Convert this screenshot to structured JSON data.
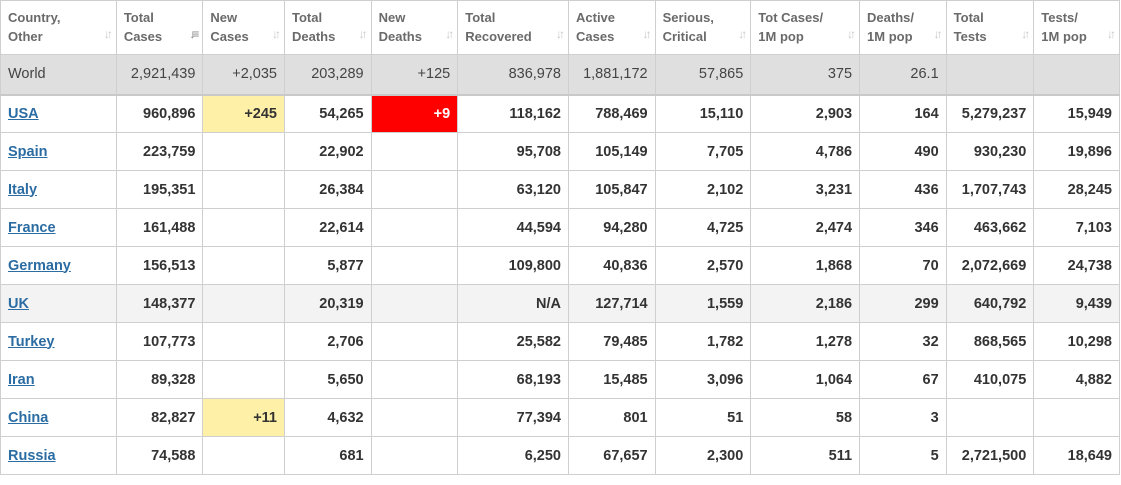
{
  "colors": {
    "new_cases_highlight": "#fff0a8",
    "new_deaths_highlight": "#ff0000",
    "link": "#2b6ca3",
    "world_row_bg": "#dfdfdf"
  },
  "headers": [
    {
      "l1": "Country,",
      "l2": "Other",
      "sort_icon": "sort-both-icon"
    },
    {
      "l1": "Total",
      "l2": "Cases",
      "sort_icon": "sort-descending-icon"
    },
    {
      "l1": "New",
      "l2": "Cases",
      "sort_icon": "sort-both-icon"
    },
    {
      "l1": "Total",
      "l2": "Deaths",
      "sort_icon": "sort-both-icon"
    },
    {
      "l1": "New",
      "l2": "Deaths",
      "sort_icon": "sort-both-icon"
    },
    {
      "l1": "Total",
      "l2": "Recovered",
      "sort_icon": "sort-both-icon"
    },
    {
      "l1": "Active",
      "l2": "Cases",
      "sort_icon": "sort-both-icon"
    },
    {
      "l1": "Serious,",
      "l2": "Critical",
      "sort_icon": "sort-both-icon"
    },
    {
      "l1": "Tot Cases/",
      "l2": "1M pop",
      "sort_icon": "sort-both-icon"
    },
    {
      "l1": "Deaths/",
      "l2": "1M pop",
      "sort_icon": "sort-both-icon"
    },
    {
      "l1": "Total",
      "l2": "Tests",
      "sort_icon": "sort-both-icon"
    },
    {
      "l1": "Tests/",
      "l2": "1M pop",
      "sort_icon": "sort-both-icon"
    }
  ],
  "world": [
    "World",
    "2,921,439",
    "+2,035",
    "203,289",
    "+125",
    "836,978",
    "1,881,172",
    "57,865",
    "375",
    "26.1",
    "",
    ""
  ],
  "rows": [
    [
      "USA",
      "960,896",
      "+245",
      "54,265",
      "+9",
      "118,162",
      "788,469",
      "15,110",
      "2,903",
      "164",
      "5,279,237",
      "15,949"
    ],
    [
      "Spain",
      "223,759",
      "",
      "22,902",
      "",
      "95,708",
      "105,149",
      "7,705",
      "4,786",
      "490",
      "930,230",
      "19,896"
    ],
    [
      "Italy",
      "195,351",
      "",
      "26,384",
      "",
      "63,120",
      "105,847",
      "2,102",
      "3,231",
      "436",
      "1,707,743",
      "28,245"
    ],
    [
      "France",
      "161,488",
      "",
      "22,614",
      "",
      "44,594",
      "94,280",
      "4,725",
      "2,474",
      "346",
      "463,662",
      "7,103"
    ],
    [
      "Germany",
      "156,513",
      "",
      "5,877",
      "",
      "109,800",
      "40,836",
      "2,570",
      "1,868",
      "70",
      "2,072,669",
      "24,738"
    ],
    [
      "UK",
      "148,377",
      "",
      "20,319",
      "",
      "N/A",
      "127,714",
      "1,559",
      "2,186",
      "299",
      "640,792",
      "9,439"
    ],
    [
      "Turkey",
      "107,773",
      "",
      "2,706",
      "",
      "25,582",
      "79,485",
      "1,782",
      "1,278",
      "32",
      "868,565",
      "10,298"
    ],
    [
      "Iran",
      "89,328",
      "",
      "5,650",
      "",
      "68,193",
      "15,485",
      "3,096",
      "1,064",
      "67",
      "410,075",
      "4,882"
    ],
    [
      "China",
      "82,827",
      "+11",
      "4,632",
      "",
      "77,394",
      "801",
      "51",
      "58",
      "3",
      "",
      ""
    ],
    [
      "Russia",
      "74,588",
      "",
      "681",
      "",
      "6,250",
      "67,657",
      "2,300",
      "511",
      "5",
      "2,721,500",
      "18,649"
    ]
  ]
}
